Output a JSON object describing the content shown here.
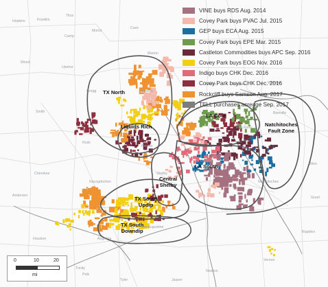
{
  "legend": [
    {
      "label": "VINE buys RDS Aug. 2014",
      "color": "#a5707f"
    },
    {
      "label": "Covey Park buys PVAC Jul. 2015",
      "color": "#f3b9ac"
    },
    {
      "label": "GEP buys ECA Aug. 2015",
      "color": "#1b6fa0"
    },
    {
      "label": "Covey Park buys EPE Mar. 2015",
      "color": "#6e9b4e"
    },
    {
      "label": "Castleton Commodities buys APC Sep. 2016",
      "color": "#6a2a3c"
    },
    {
      "label": "Covey Park buys EOG Nov. 2016",
      "color": "#f2cf12"
    },
    {
      "label": "Indigo buys CHK Dec. 2016",
      "color": "#e06c7a"
    },
    {
      "label": "Covey Park buys CHK Dec. 2016",
      "color": "#8e2f3f"
    },
    {
      "label": "Rockcliff buys Samson Aug. 2017",
      "color": "#ef9332"
    },
    {
      "label": "TELL purchases acreage Sep. 2017",
      "color": "#7d7d7d"
    }
  ],
  "regions": {
    "tx_north": "TX North",
    "liquids_rich": "Liquids Rich",
    "la_core": "LA Core",
    "natchitoches": "Natchitoches\nFault Zone",
    "la_south": "LA South",
    "central_shelby": "Central\nShelby",
    "tx_south_updip": "TX South\nUpdip",
    "tx_south_downdip": "TX South\nDowndip"
  },
  "places": [
    "Hopkins",
    "Franklin",
    "Titus",
    "Camp",
    "Morris",
    "Cass",
    "Wood",
    "Upshur",
    "Marion",
    "Harrison",
    "Smith",
    "Gregg",
    "Rusk",
    "Panola",
    "Caddo",
    "Bossier",
    "Webster",
    "De Soto",
    "Red River",
    "Bienville",
    "Natchitoches",
    "Winn",
    "Cherokee",
    "Nacogdoches",
    "Shelby",
    "Sabine",
    "Grant",
    "Anderson",
    "San Augustine",
    "Rapides",
    "Angelina",
    "Houston",
    "Trinity",
    "Polk",
    "Tyler",
    "Jasper",
    "Newton",
    "Vernon"
  ],
  "scale": {
    "ticks": [
      "0",
      "10",
      "20"
    ],
    "unit": "mi"
  }
}
